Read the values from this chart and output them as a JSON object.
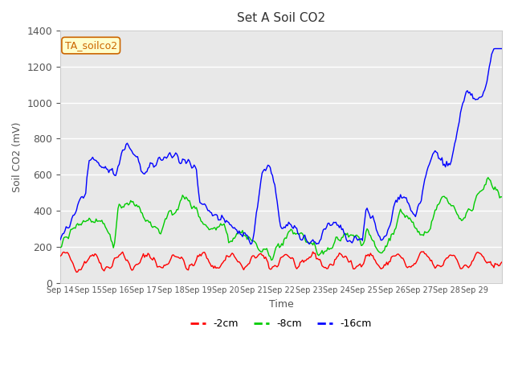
{
  "title": "Set A Soil CO2",
  "ylabel": "Soil CO2 (mV)",
  "xlabel": "Time",
  "annotation": "TA_soilco2",
  "legend_labels": [
    "-2cm",
    "-8cm",
    "-16cm"
  ],
  "legend_colors": [
    "#ff0000",
    "#00cc00",
    "#0000ff"
  ],
  "background_color": "#ffffff",
  "plot_bg_color": "#e8e8e8",
  "grid_color": "#ffffff",
  "ylim": [
    0,
    1400
  ],
  "yticks": [
    0,
    200,
    400,
    600,
    800,
    1000,
    1200,
    1400
  ],
  "xtick_labels": [
    "Sep 14",
    "Sep 15",
    "Sep 16",
    "Sep 17",
    "Sep 18",
    "Sep 19",
    "Sep 20",
    "Sep 21",
    "Sep 22",
    "Sep 23",
    "Sep 24",
    "Sep 25",
    "Sep 26",
    "Sep 27",
    "Sep 28",
    "Sep 29"
  ],
  "n_days": 16,
  "start_day": 14
}
